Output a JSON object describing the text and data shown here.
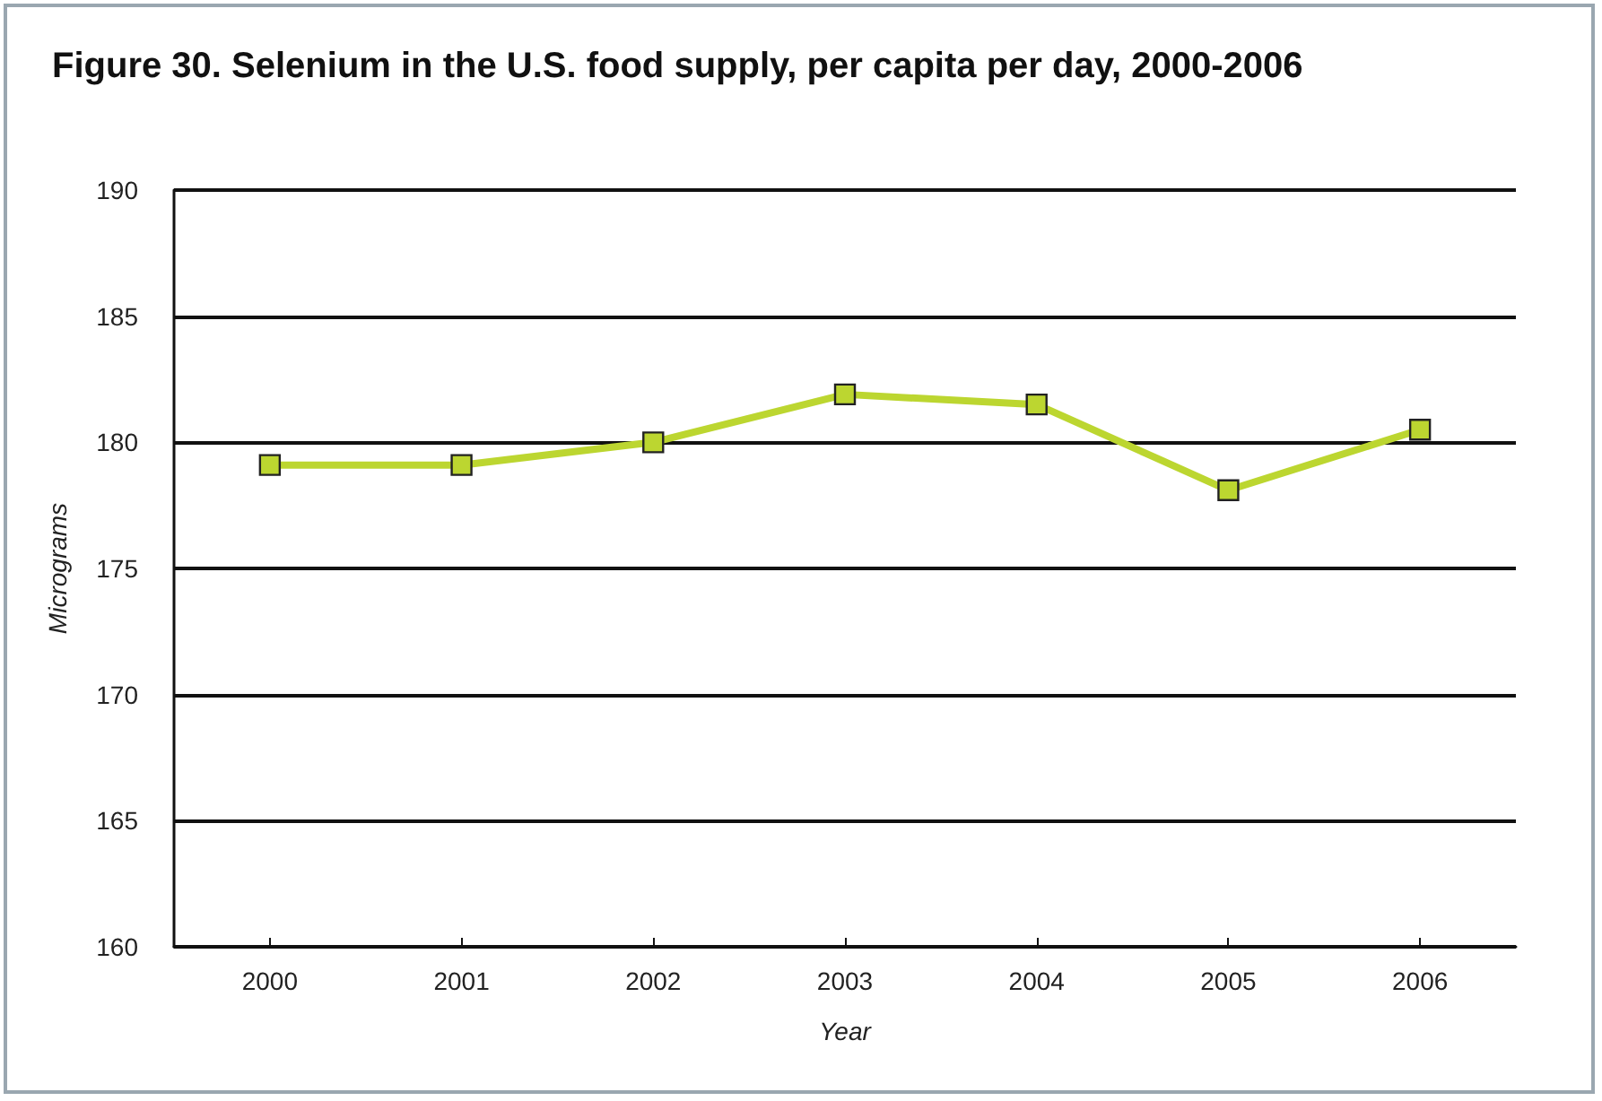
{
  "chart_data": {
    "type": "line",
    "title": "Figure 30. Selenium in the U.S. food supply, per capita per day, 2000-2006",
    "xlabel": "Year",
    "ylabel": "Micrograms",
    "categories": [
      "2000",
      "2001",
      "2002",
      "2003",
      "2004",
      "2005",
      "2006"
    ],
    "series": [
      {
        "color": "#bcd630",
        "values": [
          179.1,
          179.1,
          180.0,
          181.9,
          181.5,
          178.1,
          180.5
        ]
      }
    ],
    "ylim": [
      160,
      190
    ],
    "yticks": [
      160,
      165,
      170,
      175,
      180,
      185,
      190
    ],
    "grid": "y",
    "marker": "square",
    "line_style": "solid"
  }
}
